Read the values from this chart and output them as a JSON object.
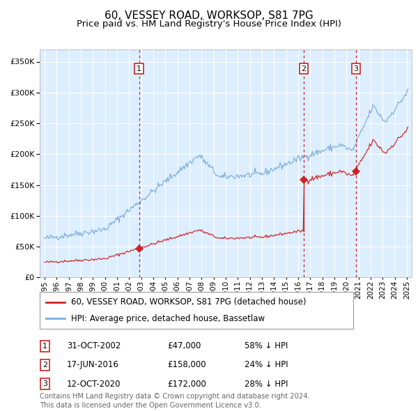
{
  "title": "60, VESSEY ROAD, WORKSOP, S81 7PG",
  "subtitle": "Price paid vs. HM Land Registry's House Price Index (HPI)",
  "ylim": [
    0,
    370000
  ],
  "xlim_start": 1994.6,
  "xlim_end": 2025.4,
  "yticks": [
    0,
    50000,
    100000,
    150000,
    200000,
    250000,
    300000,
    350000
  ],
  "xtick_years": [
    1995,
    1996,
    1997,
    1998,
    1999,
    2000,
    2001,
    2002,
    2003,
    2004,
    2005,
    2006,
    2007,
    2008,
    2009,
    2010,
    2011,
    2012,
    2013,
    2014,
    2015,
    2016,
    2017,
    2018,
    2019,
    2020,
    2021,
    2022,
    2023,
    2024,
    2025
  ],
  "hpi_color": "#7aacdc",
  "price_color": "#cc2222",
  "background_color": "#ddeeff",
  "grid_color": "#ffffff",
  "purchases": [
    {
      "year": 2002.83,
      "price": 47000,
      "label": "1"
    },
    {
      "year": 2016.46,
      "price": 158000,
      "label": "2"
    },
    {
      "year": 2020.78,
      "price": 172000,
      "label": "3"
    }
  ],
  "legend_property_label": "60, VESSEY ROAD, WORKSOP, S81 7PG (detached house)",
  "legend_hpi_label": "HPI: Average price, detached house, Bassetlaw",
  "table_entries": [
    {
      "num": "1",
      "date": "31-OCT-2002",
      "price": "£47,000",
      "hpi": "58% ↓ HPI"
    },
    {
      "num": "2",
      "date": "17-JUN-2016",
      "price": "£158,000",
      "hpi": "24% ↓ HPI"
    },
    {
      "num": "3",
      "date": "12-OCT-2020",
      "price": "£172,000",
      "hpi": "28% ↓ HPI"
    }
  ],
  "footer": "Contains HM Land Registry data © Crown copyright and database right 2024.\nThis data is licensed under the Open Government Licence v3.0."
}
